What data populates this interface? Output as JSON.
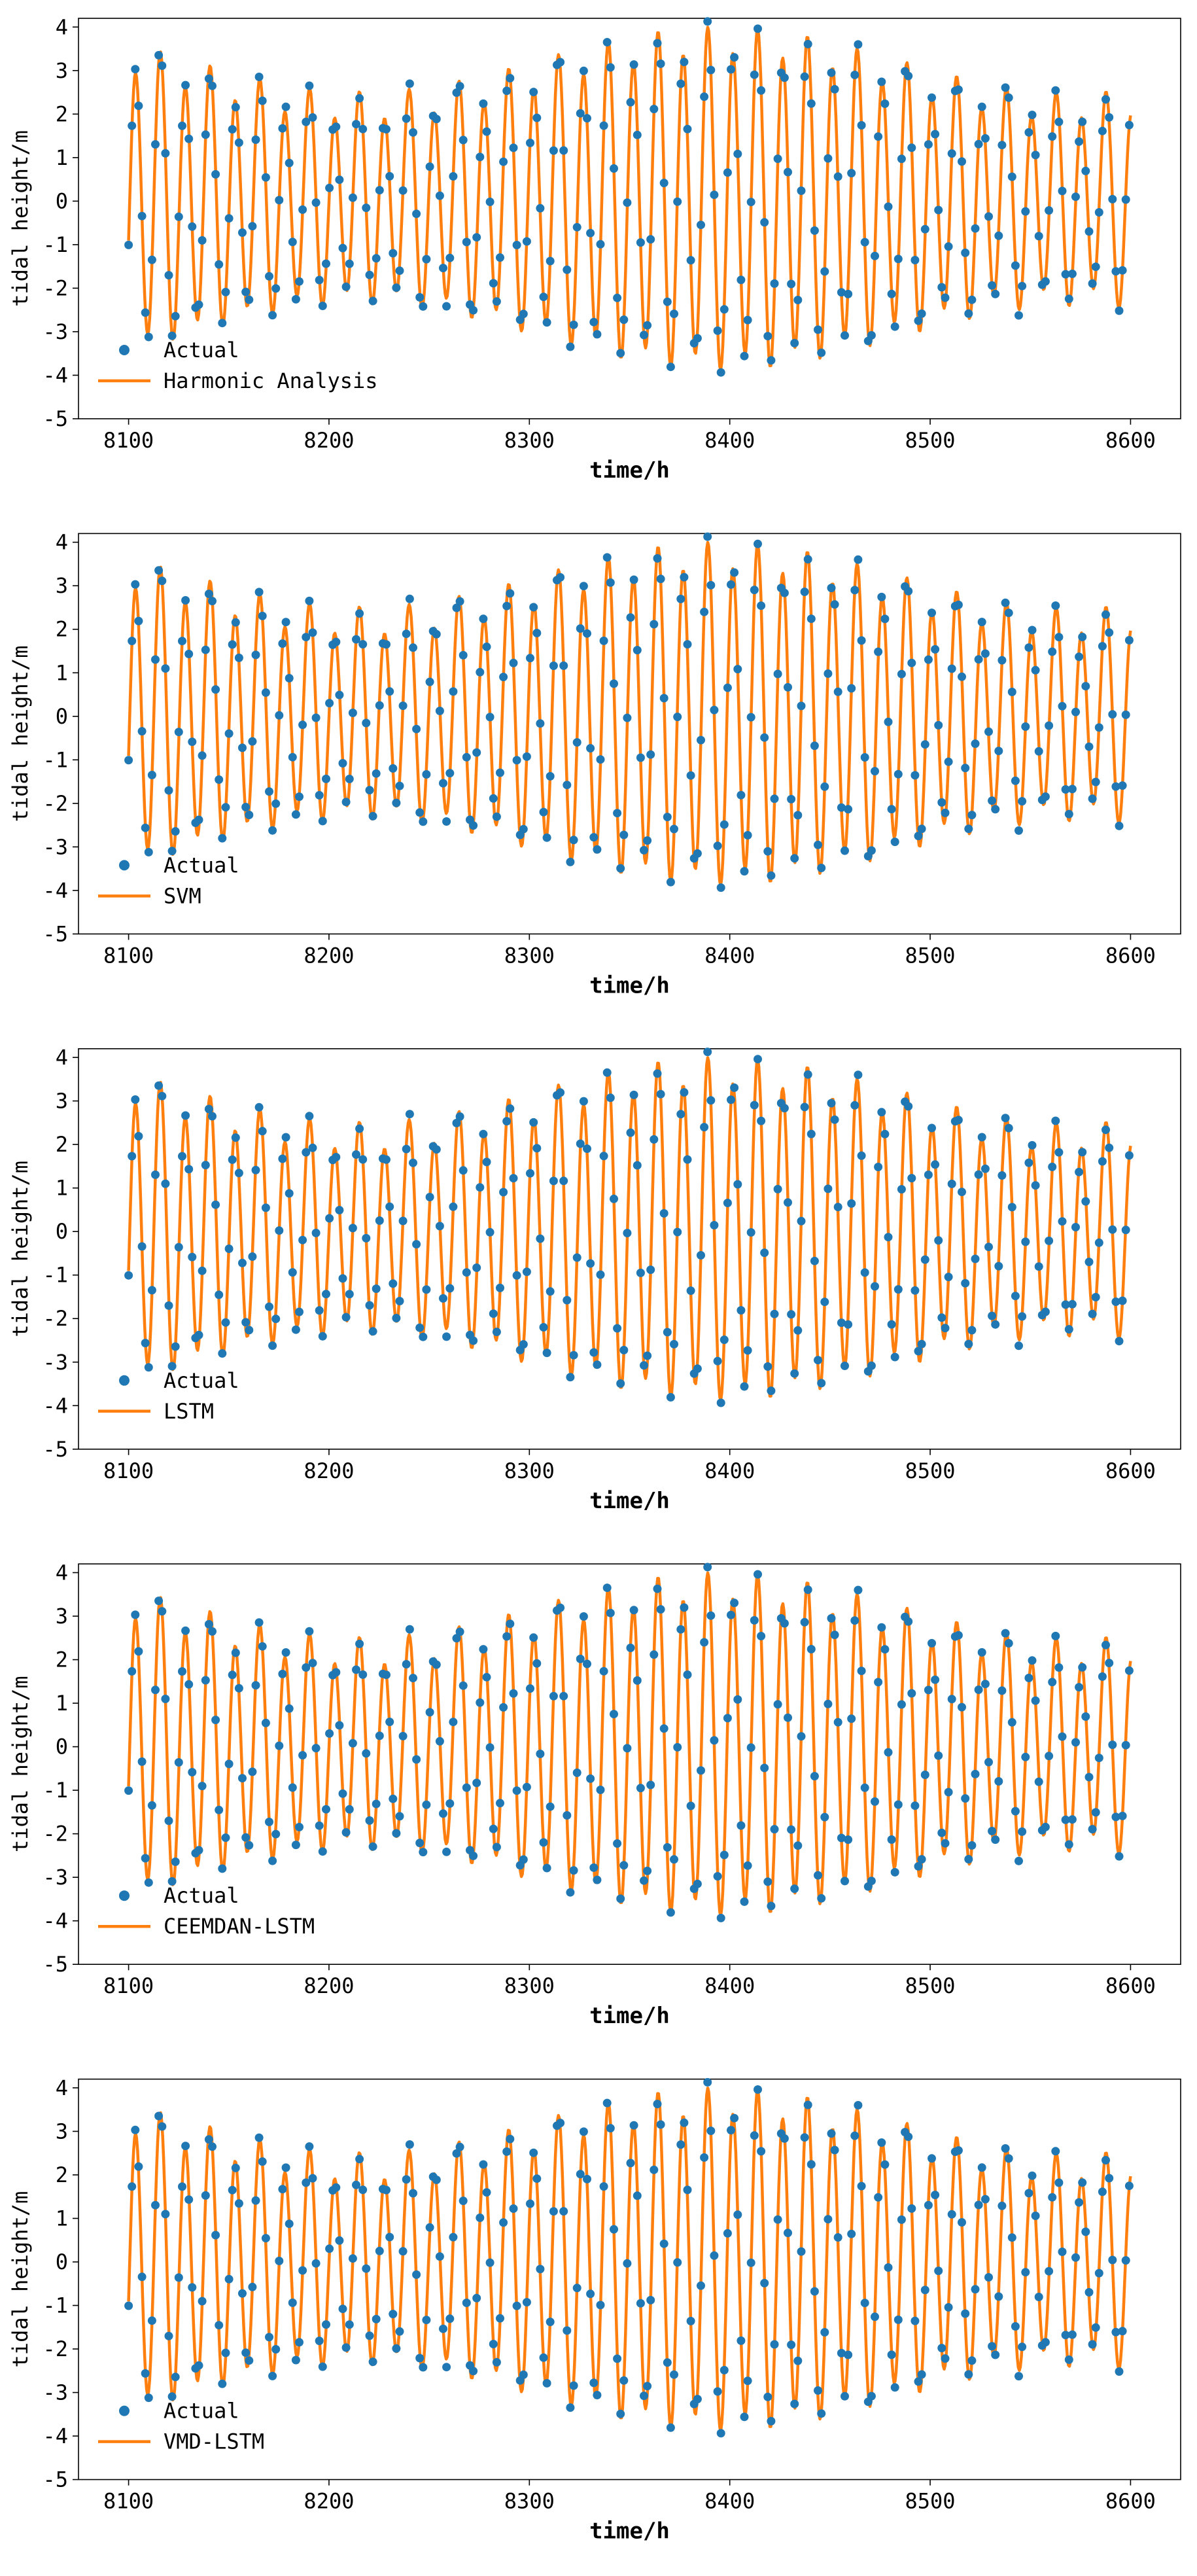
{
  "chart_data": [
    {
      "type": "line",
      "title": "",
      "xlabel": "time/h",
      "ylabel": "tidal height/m",
      "xlim": [
        8075,
        8625
      ],
      "ylim": [
        -5,
        4.2
      ],
      "xticks": [
        8100,
        8200,
        8300,
        8400,
        8500,
        8600
      ],
      "yticks": [
        -5,
        -4,
        -3,
        -2,
        -1,
        0,
        1,
        2,
        3,
        4
      ],
      "legend": {
        "placement": "lower-left",
        "entries": [
          "Actual",
          "Harmonic Analysis"
        ]
      },
      "series": [
        {
          "name": "Actual",
          "style": "scatter",
          "color": "#1f77b4",
          "x_range": [
            8100,
            8600
          ],
          "x_step": 1.67,
          "period_h": 12.42,
          "low_amplitude": 2.2,
          "high_amplitude": 3.7,
          "envelope_cycle_h": 355,
          "envelope_peak_at": 8395
        },
        {
          "name": "Harmonic Analysis",
          "style": "line",
          "color": "#ff7f0e",
          "x_range": [
            8100,
            8600
          ],
          "period_h": 12.42,
          "low_amplitude": 2.2,
          "high_amplitude": 3.7,
          "envelope_cycle_h": 355,
          "envelope_peak_at": 8395
        }
      ]
    },
    {
      "type": "line",
      "title": "",
      "xlabel": "time/h",
      "ylabel": "tidal height/m",
      "xlim": [
        8075,
        8625
      ],
      "ylim": [
        -5,
        4.2
      ],
      "xticks": [
        8100,
        8200,
        8300,
        8400,
        8500,
        8600
      ],
      "yticks": [
        -5,
        -4,
        -3,
        -2,
        -1,
        0,
        1,
        2,
        3,
        4
      ],
      "legend": {
        "placement": "lower-left",
        "entries": [
          "Actual",
          "SVM"
        ]
      },
      "series": [
        {
          "name": "Actual",
          "style": "scatter",
          "color": "#1f77b4",
          "x_range": [
            8100,
            8600
          ],
          "x_step": 1.67,
          "period_h": 12.42,
          "low_amplitude": 2.2,
          "high_amplitude": 3.7,
          "envelope_cycle_h": 355,
          "envelope_peak_at": 8395
        },
        {
          "name": "SVM",
          "style": "line",
          "color": "#ff7f0e",
          "x_range": [
            8100,
            8600
          ],
          "period_h": 12.42,
          "low_amplitude": 2.2,
          "high_amplitude": 3.7,
          "envelope_cycle_h": 355,
          "envelope_peak_at": 8395
        }
      ]
    },
    {
      "type": "line",
      "title": "",
      "xlabel": "time/h",
      "ylabel": "tidal height/m",
      "xlim": [
        8075,
        8625
      ],
      "ylim": [
        -5,
        4.2
      ],
      "xticks": [
        8100,
        8200,
        8300,
        8400,
        8500,
        8600
      ],
      "yticks": [
        -5,
        -4,
        -3,
        -2,
        -1,
        0,
        1,
        2,
        3,
        4
      ],
      "legend": {
        "placement": "lower-left",
        "entries": [
          "Actual",
          "LSTM"
        ]
      },
      "series": [
        {
          "name": "Actual",
          "style": "scatter",
          "color": "#1f77b4",
          "x_range": [
            8100,
            8600
          ],
          "x_step": 1.67,
          "period_h": 12.42,
          "low_amplitude": 2.2,
          "high_amplitude": 3.7,
          "envelope_cycle_h": 355,
          "envelope_peak_at": 8395
        },
        {
          "name": "LSTM",
          "style": "line",
          "color": "#ff7f0e",
          "x_range": [
            8100,
            8600
          ],
          "period_h": 12.42,
          "low_amplitude": 2.2,
          "high_amplitude": 3.7,
          "envelope_cycle_h": 355,
          "envelope_peak_at": 8395
        }
      ]
    },
    {
      "type": "line",
      "title": "",
      "xlabel": "time/h",
      "ylabel": "tidal height/m",
      "xlim": [
        8075,
        8625
      ],
      "ylim": [
        -5,
        4.2
      ],
      "xticks": [
        8100,
        8200,
        8300,
        8400,
        8500,
        8600
      ],
      "yticks": [
        -5,
        -4,
        -3,
        -2,
        -1,
        0,
        1,
        2,
        3,
        4
      ],
      "legend": {
        "placement": "lower-left",
        "entries": [
          "Actual",
          "CEEMDAN-LSTM"
        ]
      },
      "series": [
        {
          "name": "Actual",
          "style": "scatter",
          "color": "#1f77b4",
          "x_range": [
            8100,
            8600
          ],
          "x_step": 1.67,
          "period_h": 12.42,
          "low_amplitude": 2.2,
          "high_amplitude": 3.7,
          "envelope_cycle_h": 355,
          "envelope_peak_at": 8395
        },
        {
          "name": "CEEMDAN-LSTM",
          "style": "line",
          "color": "#ff7f0e",
          "x_range": [
            8100,
            8600
          ],
          "period_h": 12.42,
          "low_amplitude": 2.2,
          "high_amplitude": 3.7,
          "envelope_cycle_h": 355,
          "envelope_peak_at": 8395
        }
      ]
    },
    {
      "type": "line",
      "title": "",
      "xlabel": "time/h",
      "ylabel": "tidal height/m",
      "xlim": [
        8075,
        8625
      ],
      "ylim": [
        -5,
        4.2
      ],
      "xticks": [
        8100,
        8200,
        8300,
        8400,
        8500,
        8600
      ],
      "yticks": [
        -5,
        -4,
        -3,
        -2,
        -1,
        0,
        1,
        2,
        3,
        4
      ],
      "legend": {
        "placement": "lower-left",
        "entries": [
          "Actual",
          "VMD-LSTM"
        ]
      },
      "series": [
        {
          "name": "Actual",
          "style": "scatter",
          "color": "#1f77b4",
          "x_range": [
            8100,
            8600
          ],
          "x_step": 1.67,
          "period_h": 12.42,
          "low_amplitude": 2.2,
          "high_amplitude": 3.7,
          "envelope_cycle_h": 355,
          "envelope_peak_at": 8395
        },
        {
          "name": "VMD-LSTM",
          "style": "line",
          "color": "#ff7f0e",
          "x_range": [
            8100,
            8600
          ],
          "period_h": 12.42,
          "low_amplitude": 2.2,
          "high_amplitude": 3.7,
          "envelope_cycle_h": 355,
          "envelope_peak_at": 8395
        }
      ]
    }
  ]
}
